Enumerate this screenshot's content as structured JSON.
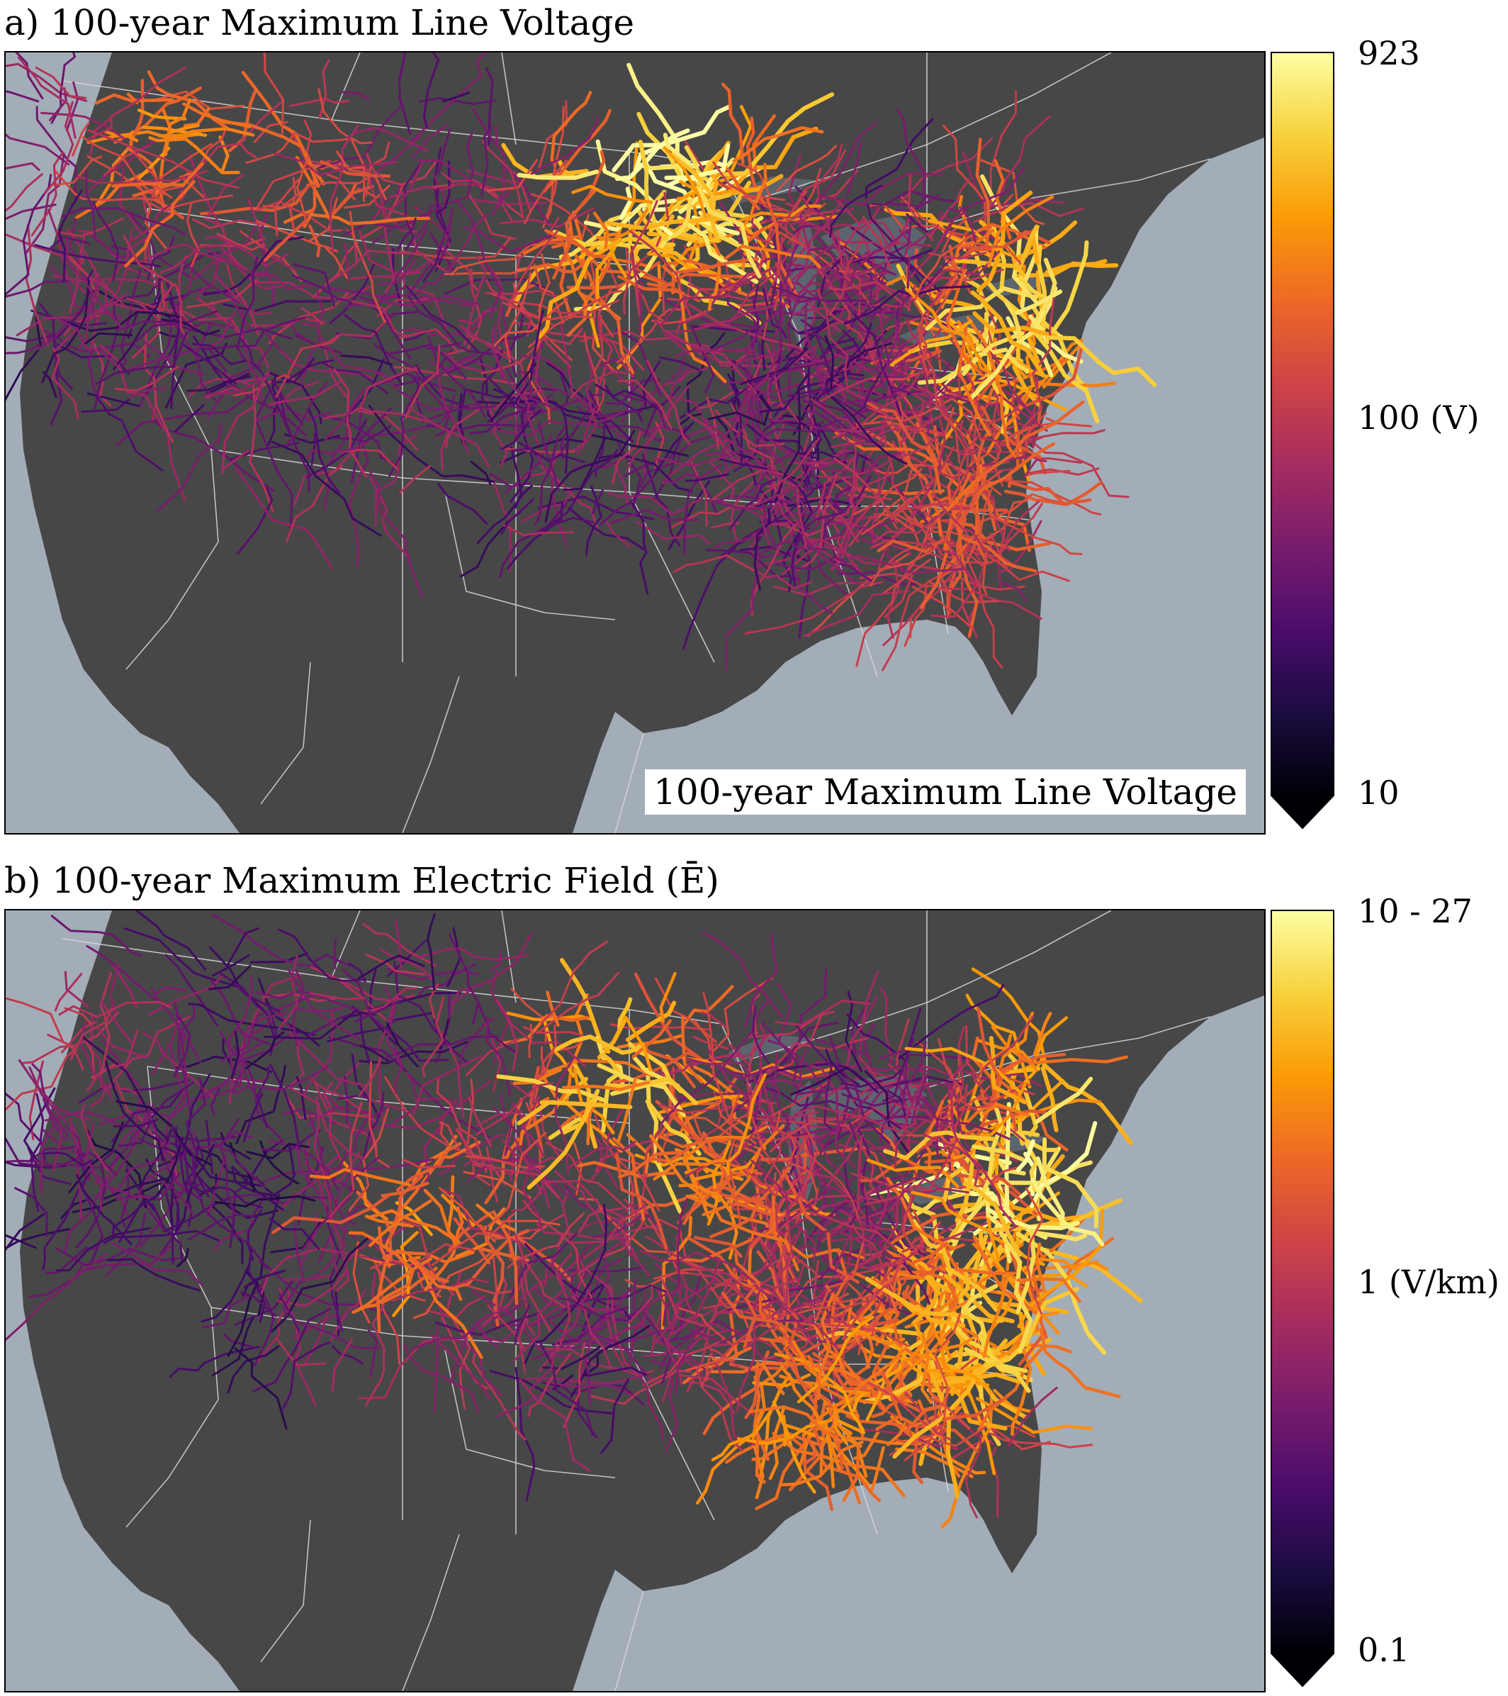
{
  "panels": [
    {
      "id": "a",
      "title": "a) 100-year Maximum Line Voltage",
      "inset_label": "100-year Maximum Line Voltage",
      "colorbar": {
        "scale": "log",
        "min": 10,
        "max": 923,
        "unit": "V",
        "colormap": "inferno",
        "extend": "min",
        "ticks": [
          {
            "value": 923,
            "label": "923"
          },
          {
            "value": 100,
            "label": "100 (V)"
          },
          {
            "value": 10,
            "label": "10"
          }
        ]
      }
    },
    {
      "id": "b",
      "title": "b) 100-year Maximum Electric Field (Ē)",
      "colorbar": {
        "scale": "log",
        "min": 0.1,
        "max": 10,
        "unit": "V/km",
        "colormap": "inferno",
        "extend": "min",
        "ticks": [
          {
            "value": 10,
            "label": "10 - 27"
          },
          {
            "value": 1,
            "label": "1 (V/km)"
          },
          {
            "value": 0.1,
            "label": "0.1"
          }
        ]
      }
    }
  ],
  "colors": {
    "ocean": "#a3adb7",
    "land": "#474747",
    "lakes": "#5c646d",
    "borders": "#d8d8d8",
    "colormap_stops": [
      "#000004",
      "#1b0c41",
      "#4a0c6b",
      "#781c6d",
      "#a52c60",
      "#cf4446",
      "#ed6925",
      "#fb9b06",
      "#f7d13d",
      "#fcffa4"
    ]
  }
}
